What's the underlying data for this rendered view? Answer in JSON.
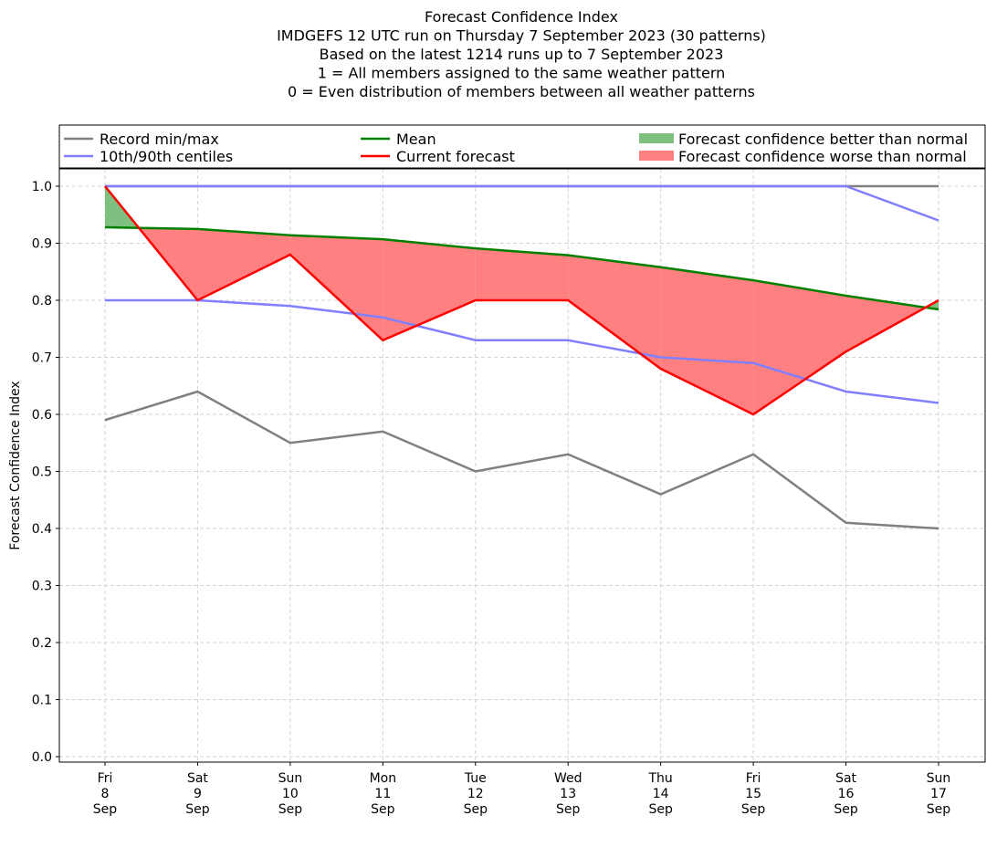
{
  "chart_data": {
    "type": "line",
    "title_lines": [
      "Forecast Confidence Index",
      "IMDGEFS 12 UTC run on Thursday 7 September 2023 (30 patterns)",
      "Based on the latest 1214 runs up to 7 September 2023",
      "1 = All members assigned to the same weather pattern",
      "0 = Even distribution of members between all weather patterns"
    ],
    "ylabel": "Forecast Confidence Index",
    "xlabel": "",
    "ylim": [
      0,
      1.0
    ],
    "yticks": [
      "0.0",
      "0.1",
      "0.2",
      "0.3",
      "0.4",
      "0.5",
      "0.6",
      "0.7",
      "0.8",
      "0.9",
      "1.0"
    ],
    "grid": true,
    "legend_placement": "top, above plot",
    "categories": [
      [
        "Fri",
        "8",
        "Sep"
      ],
      [
        "Sat",
        "9",
        "Sep"
      ],
      [
        "Sun",
        "10",
        "Sep"
      ],
      [
        "Mon",
        "11",
        "Sep"
      ],
      [
        "Tue",
        "12",
        "Sep"
      ],
      [
        "Wed",
        "13",
        "Sep"
      ],
      [
        "Thu",
        "14",
        "Sep"
      ],
      [
        "Fri",
        "15",
        "Sep"
      ],
      [
        "Sat",
        "16",
        "Sep"
      ],
      [
        "Sun",
        "17",
        "Sep"
      ]
    ],
    "series": [
      {
        "name": "Record min/max",
        "role": "record_max",
        "color": "#808080",
        "values": [
          1.0,
          1.0,
          1.0,
          1.0,
          1.0,
          1.0,
          1.0,
          1.0,
          1.0,
          1.0
        ]
      },
      {
        "name": "Record min/max",
        "role": "record_min",
        "color": "#808080",
        "values": [
          0.59,
          0.64,
          0.55,
          0.57,
          0.5,
          0.53,
          0.46,
          0.53,
          0.41,
          0.4
        ]
      },
      {
        "name": "10th/90th centiles",
        "role": "p90",
        "color": "#8080ff",
        "values": [
          1.0,
          1.0,
          1.0,
          1.0,
          1.0,
          1.0,
          1.0,
          1.0,
          1.0,
          0.94
        ]
      },
      {
        "name": "10th/90th centiles",
        "role": "p10",
        "color": "#8080ff",
        "values": [
          0.8,
          0.8,
          0.79,
          0.77,
          0.73,
          0.73,
          0.7,
          0.69,
          0.64,
          0.62
        ]
      },
      {
        "name": "Mean",
        "role": "mean",
        "color": "#008000",
        "values": [
          0.928,
          0.925,
          0.914,
          0.907,
          0.891,
          0.879,
          0.858,
          0.835,
          0.808,
          0.784
        ]
      },
      {
        "name": "Current forecast",
        "role": "current",
        "color": "#ff0000",
        "values": [
          1.0,
          0.8,
          0.88,
          0.73,
          0.8,
          0.8,
          0.68,
          0.6,
          0.71,
          0.8
        ]
      }
    ],
    "fills": {
      "better": {
        "label": "Forecast confidence better than normal",
        "color": "#7fbf7f"
      },
      "worse": {
        "label": "Forecast confidence worse than normal",
        "color": "#ff8080"
      }
    },
    "legend": [
      {
        "label": "Record min/max",
        "kind": "line",
        "color": "#808080"
      },
      {
        "label": "10th/90th centiles",
        "kind": "line",
        "color": "#8080ff"
      },
      {
        "label": "Mean",
        "kind": "line",
        "color": "#008000"
      },
      {
        "label": "Current forecast",
        "kind": "line",
        "color": "#ff0000"
      },
      {
        "label": "Forecast confidence better than normal",
        "kind": "patch",
        "color": "#7fbf7f"
      },
      {
        "label": "Forecast confidence worse than normal",
        "kind": "patch",
        "color": "#ff8080"
      }
    ]
  }
}
